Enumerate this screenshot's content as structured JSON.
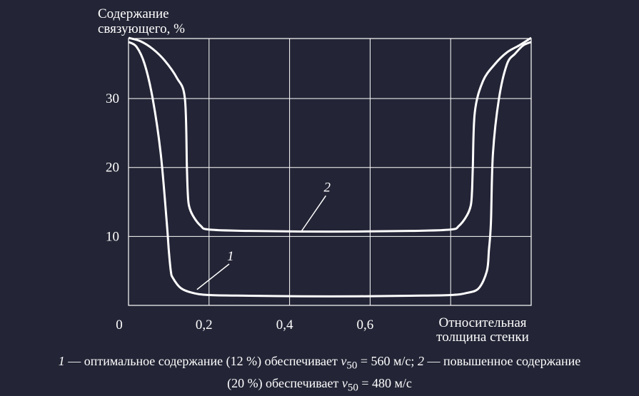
{
  "chart_data": {
    "type": "line",
    "ylabel_lines": [
      "Содержание",
      "связующего, %"
    ],
    "xlabel_lines": [
      "Относительная",
      "толщина стенки"
    ],
    "x_ticks": [
      {
        "value": 0,
        "label": "0"
      },
      {
        "value": 0.2,
        "label": "0,2"
      },
      {
        "value": 0.4,
        "label": "0,4"
      },
      {
        "value": 0.6,
        "label": "0,6"
      }
    ],
    "y_ticks": [
      {
        "value": 10,
        "label": "10"
      },
      {
        "value": 20,
        "label": "20"
      },
      {
        "value": 30,
        "label": "30"
      }
    ],
    "xlim": [
      0,
      1
    ],
    "ylim": [
      0,
      38.7
    ],
    "grid": true,
    "series": [
      {
        "name": "1",
        "x": [
          0.0,
          0.02,
          0.04,
          0.06,
          0.08,
          0.095,
          0.1,
          0.105,
          0.11,
          0.13,
          0.16,
          0.2,
          0.3,
          0.5,
          0.7,
          0.8,
          0.84,
          0.87,
          0.89,
          0.895,
          0.9,
          0.905,
          0.92,
          0.94,
          0.96,
          0.98,
          1.0
        ],
        "y": [
          38.2,
          37.5,
          35.0,
          30.0,
          22.0,
          12.0,
          8.0,
          5.0,
          4.0,
          2.5,
          1.8,
          1.5,
          1.4,
          1.3,
          1.4,
          1.5,
          1.8,
          2.5,
          5.0,
          8.0,
          12.0,
          22.0,
          30.0,
          35.0,
          36.5,
          37.7,
          38.2
        ]
      },
      {
        "name": "2",
        "x": [
          0.0,
          0.03,
          0.06,
          0.09,
          0.12,
          0.14,
          0.145,
          0.147,
          0.15,
          0.16,
          0.18,
          0.2,
          0.3,
          0.5,
          0.7,
          0.8,
          0.82,
          0.84,
          0.85,
          0.853,
          0.855,
          0.86,
          0.88,
          0.91,
          0.94,
          0.97,
          1.0
        ],
        "y": [
          38.8,
          38.3,
          37.2,
          35.5,
          33.0,
          30.0,
          20.0,
          16.5,
          14.5,
          13.0,
          11.5,
          11.0,
          10.8,
          10.7,
          10.8,
          11.0,
          11.5,
          13.0,
          14.5,
          16.5,
          20.0,
          28.0,
          32.5,
          35.0,
          36.7,
          37.7,
          38.8
        ]
      }
    ],
    "series_labels": [
      {
        "series": "1",
        "text": "1",
        "x": 0.245,
        "y": 6.5,
        "leader_x": [
          0.17,
          0.25
        ],
        "leader_y": [
          2.3,
          6.0
        ]
      },
      {
        "series": "2",
        "text": "2",
        "x": 0.485,
        "y": 16.5,
        "leader_x": [
          0.43,
          0.49
        ],
        "leader_y": [
          10.8,
          15.9
        ]
      }
    ]
  },
  "caption": {
    "part1_num": "1",
    "part1_text": " — оптимальное содержание (12 %) обеспечивает ",
    "v_symbol": "v",
    "v_sub": "50",
    "part1_value": " = 560 м/с; ",
    "part2_num": "2",
    "part2_text_a": " — повышенное содержание",
    "part2_text_b": "(20 %) обеспечивает ",
    "part2_value": " = 480 м/с"
  }
}
